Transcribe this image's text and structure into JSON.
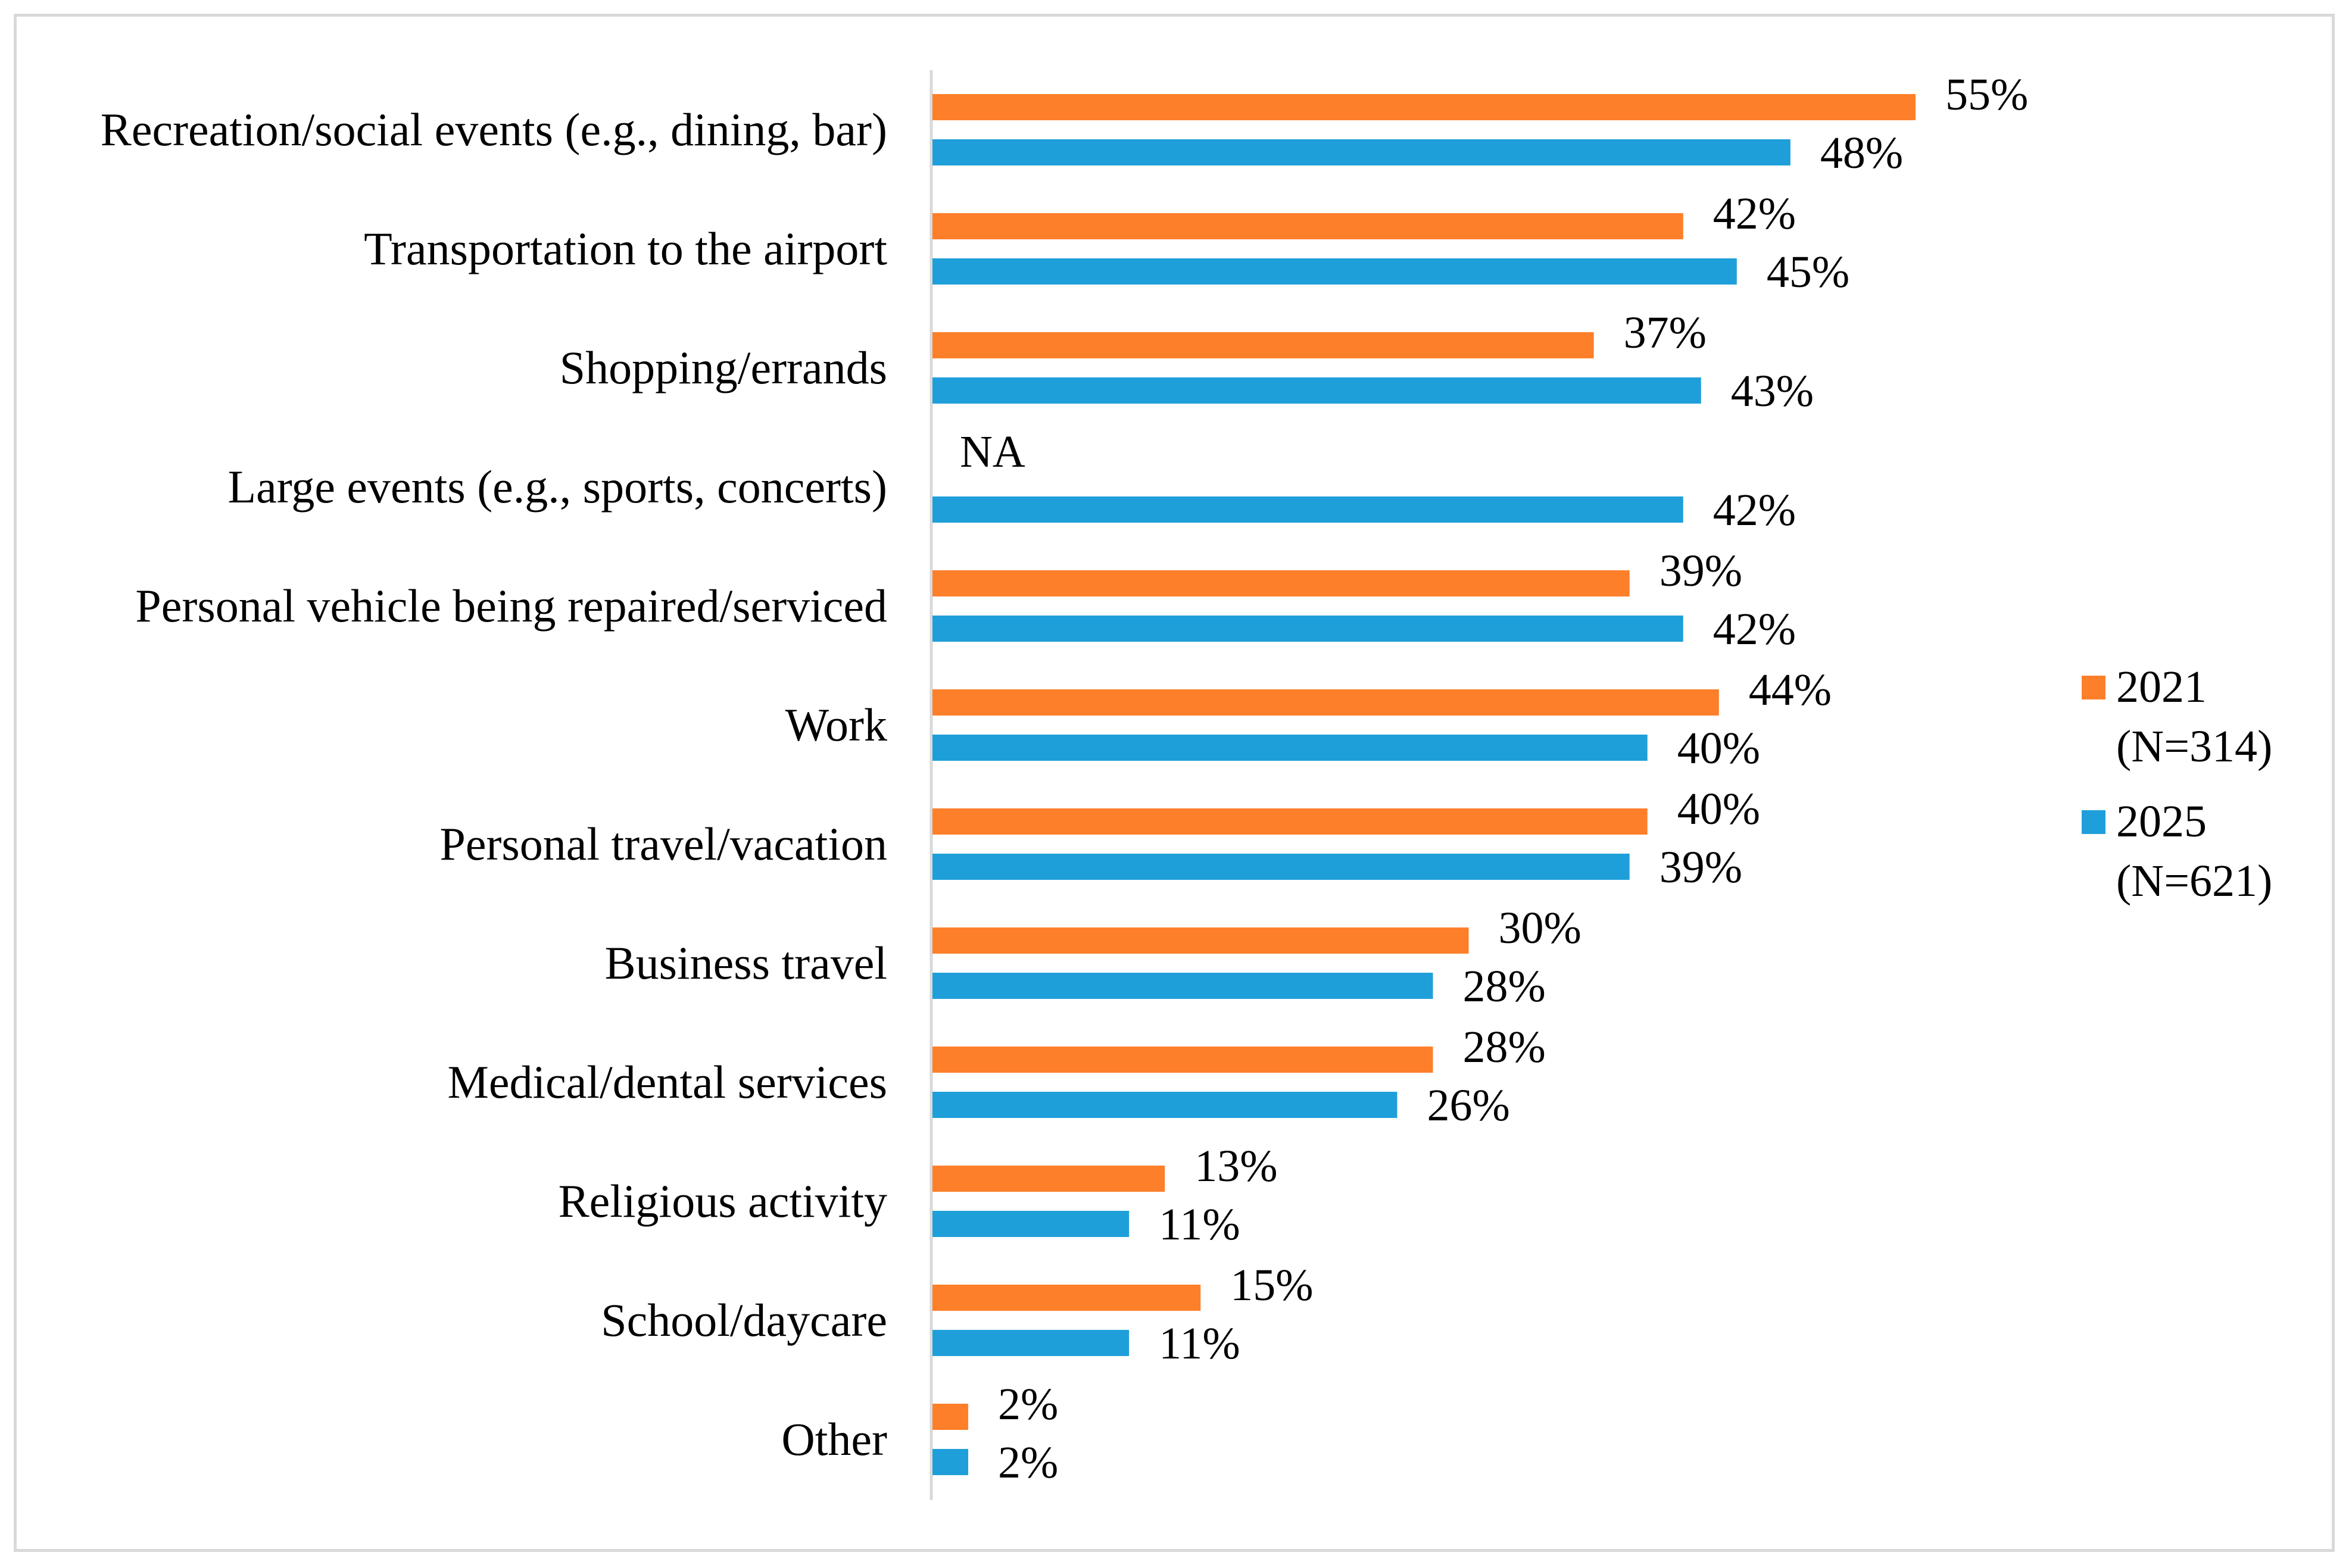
{
  "chart_data": {
    "type": "bar",
    "orientation": "horizontal",
    "title": "",
    "xlabel": "",
    "ylabel": "",
    "xlim": [
      0,
      55
    ],
    "grid": false,
    "legend_position": "right",
    "categories": [
      "Recreation/social events (e.g., dining, bar)",
      "Transportation to the airport",
      "Shopping/errands",
      "Large events (e.g., sports, concerts)",
      "Personal vehicle being repaired/serviced",
      "Work",
      "Personal travel/vacation",
      "Business travel",
      "Medical/dental services",
      "Religious activity",
      "School/daycare",
      "Other"
    ],
    "series": [
      {
        "name": "2021 (N=314)",
        "legend_lines": [
          "2021",
          "(N=314)"
        ],
        "color": "#fe7f2a",
        "values": [
          55,
          42,
          37,
          null,
          39,
          44,
          40,
          30,
          28,
          13,
          15,
          2
        ],
        "labels": [
          "55%",
          "42%",
          "37%",
          "NA",
          "39%",
          "44%",
          "40%",
          "30%",
          "28%",
          "13%",
          "15%",
          "2%"
        ]
      },
      {
        "name": "2025 (N=621)",
        "legend_lines": [
          "2025",
          "(N=621)"
        ],
        "color": "#1f9fd9",
        "values": [
          48,
          45,
          43,
          42,
          42,
          40,
          39,
          28,
          26,
          11,
          11,
          2
        ],
        "labels": [
          "48%",
          "45%",
          "43%",
          "42%",
          "42%",
          "40%",
          "39%",
          "28%",
          "26%",
          "11%",
          "11%",
          "2%"
        ]
      }
    ]
  }
}
